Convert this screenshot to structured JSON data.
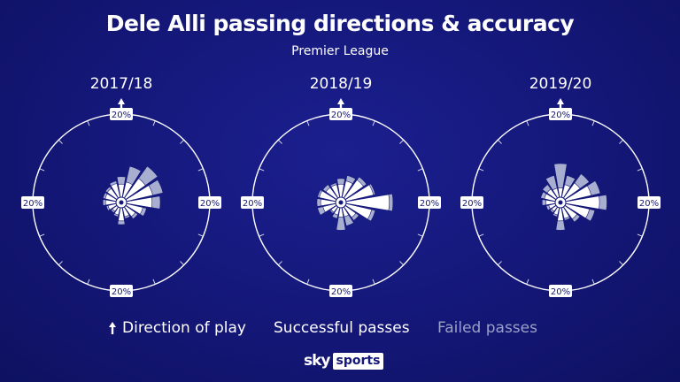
{
  "title": "Dele Alli passing directions & accuracy",
  "subtitle": "Premier League",
  "legend": {
    "direction": "Direction of play",
    "successful": "Successful passes",
    "failed": "Failed passes"
  },
  "brand": {
    "sky": "sky",
    "sports": "sports"
  },
  "colors": {
    "background": "#141777",
    "successful": "#ffffff",
    "failed": "#a7aecf",
    "ring": "#ffffff",
    "legend_failed_text": "#9aa2c8"
  },
  "chart_data": [
    {
      "type": "polar-bar",
      "title": "2017/18",
      "scale_label": "20%",
      "sectors": 16,
      "direction_start": "up",
      "successful": [
        3.5,
        4.2,
        6.5,
        7.2,
        6.8,
        4.5,
        3.2,
        2.5,
        3.5,
        2.0,
        1.5,
        2.2,
        2.8,
        3.0,
        3.2,
        3.8
      ],
      "failed": [
        5.5,
        8.5,
        10.5,
        10.0,
        9.0,
        5.5,
        4.0,
        3.0,
        4.5,
        2.5,
        2.0,
        2.7,
        3.5,
        3.6,
        3.8,
        4.5
      ]
    },
    {
      "type": "polar-bar",
      "title": "2018/19",
      "scale_label": "20%",
      "sectors": 16,
      "direction_start": "up",
      "successful": [
        3.5,
        4.5,
        6.0,
        7.5,
        11.5,
        7.0,
        3.5,
        2.5,
        2.5,
        2.0,
        1.8,
        3.5,
        4.0,
        4.5,
        3.5,
        3.5
      ],
      "failed": [
        5.0,
        6.0,
        7.0,
        8.0,
        12.5,
        8.0,
        4.5,
        5.0,
        6.0,
        3.0,
        2.2,
        5.0,
        5.0,
        5.0,
        4.5,
        4.0
      ]
    },
    {
      "type": "polar-bar",
      "title": "2019/20",
      "scale_label": "20%",
      "sectors": 16,
      "direction_start": "up",
      "successful": [
        2.5,
        3.5,
        5.0,
        7.0,
        9.0,
        6.5,
        4.0,
        3.0,
        3.5,
        2.0,
        1.5,
        1.8,
        2.5,
        3.0,
        3.0,
        2.5
      ],
      "failed": [
        9.0,
        6.0,
        8.0,
        9.5,
        11.0,
        8.0,
        5.0,
        3.5,
        6.0,
        2.5,
        2.0,
        2.5,
        3.5,
        4.0,
        4.5,
        6.0
      ]
    }
  ]
}
